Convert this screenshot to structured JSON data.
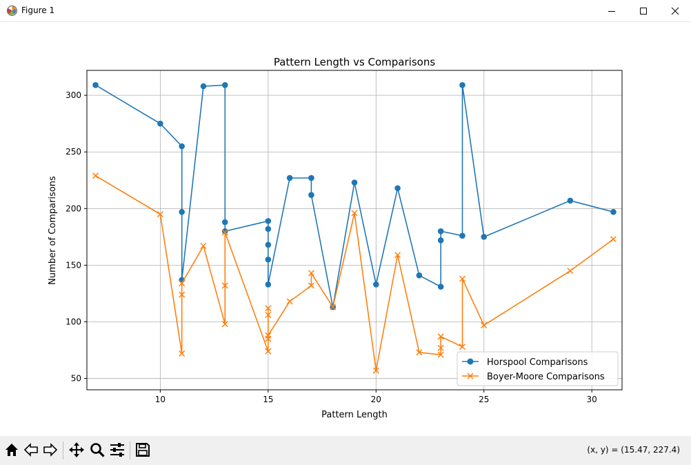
{
  "window": {
    "title": "Figure 1"
  },
  "toolbar": {
    "buttons": [
      "home-icon",
      "back-icon",
      "forward-icon",
      "pan-icon",
      "zoom-icon",
      "configure-subplots-icon",
      "save-icon"
    ],
    "coords_text": "(x, y) = (15.47, 227.4)"
  },
  "colors": {
    "horspool": "#1f77b4",
    "boyer_moore": "#ff7f0e",
    "grid": "#b0b0b0"
  },
  "chart_data": {
    "type": "line",
    "title": "Pattern Length vs Comparisons",
    "xlabel": "Pattern Length",
    "ylabel": "Number of Comparisons",
    "xlim": [
      6.6,
      31.4
    ],
    "ylim": [
      40,
      322
    ],
    "xticks": [
      10,
      15,
      20,
      25,
      30
    ],
    "yticks": [
      50,
      100,
      150,
      200,
      250,
      300
    ],
    "grid": true,
    "legend_position": "lower-right",
    "series": [
      {
        "name": "Horspool Comparisons",
        "marker": "circle",
        "x": [
          7,
          10,
          11,
          11,
          11,
          12,
          13,
          13,
          13,
          15,
          15,
          15,
          15,
          15,
          16,
          17,
          17,
          18,
          19,
          20,
          21,
          22,
          23,
          23,
          23,
          24,
          24,
          25,
          29,
          31
        ],
        "y": [
          309,
          275,
          255,
          197,
          137,
          308,
          309,
          188,
          180,
          189,
          182,
          168,
          155,
          133,
          227,
          227,
          212,
          113,
          223,
          133,
          218,
          141,
          131,
          172,
          180,
          176,
          309,
          175,
          207,
          197
        ]
      },
      {
        "name": "Boyer-Moore Comparisons",
        "marker": "x",
        "x": [
          7,
          10,
          11,
          11,
          11,
          12,
          13,
          13,
          13,
          15,
          15,
          15,
          15,
          15,
          16,
          17,
          17,
          18,
          19,
          20,
          21,
          22,
          23,
          23,
          23,
          24,
          24,
          25,
          29,
          31
        ],
        "y": [
          229,
          195,
          72,
          124,
          134,
          167,
          98,
          132,
          179,
          74,
          112,
          106,
          85,
          88,
          118,
          132,
          143,
          113,
          196,
          57,
          159,
          73,
          71,
          77,
          87,
          78,
          138,
          97,
          145,
          173
        ]
      }
    ]
  }
}
